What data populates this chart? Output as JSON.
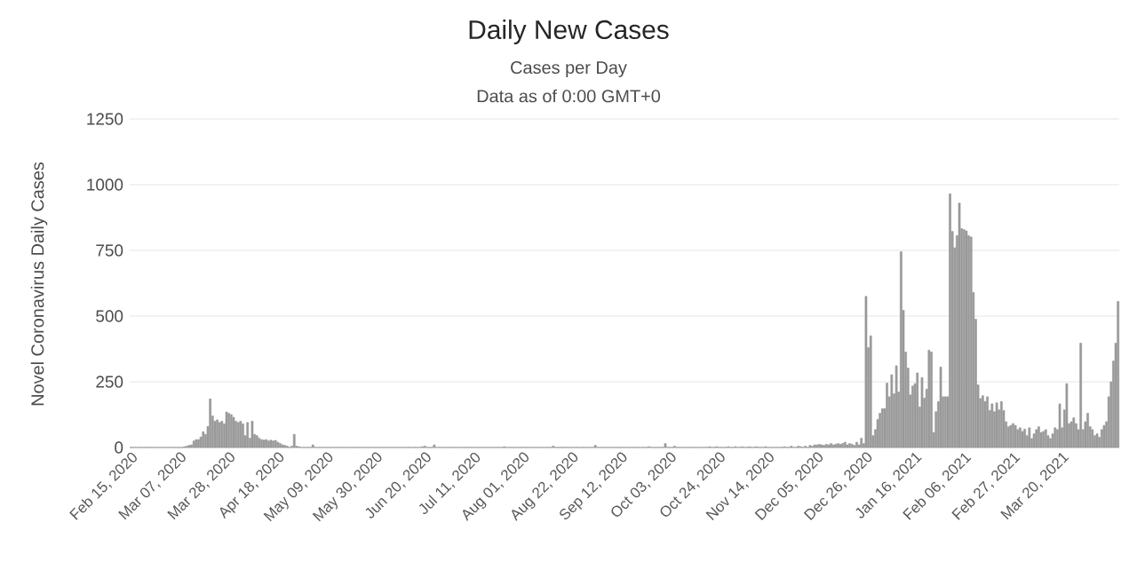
{
  "chart_data": {
    "type": "bar",
    "title": "Daily New Cases",
    "subtitle": "Cases per Day",
    "annotations": [
      "Data as of 0:00 GMT+0"
    ],
    "ylabel": "Novel Coronavirus Daily Cases",
    "color": "#999999",
    "ylim": [
      0,
      1250
    ],
    "yticks": [
      0,
      250,
      500,
      750,
      1000,
      1250
    ],
    "grid": "y",
    "categories": [
      "Feb 15, 2020",
      null,
      null,
      null,
      null,
      null,
      null,
      null,
      null,
      null,
      null,
      null,
      null,
      null,
      null,
      null,
      null,
      null,
      null,
      null,
      null,
      "Mar 07, 2020",
      null,
      null,
      null,
      null,
      null,
      null,
      null,
      null,
      null,
      null,
      null,
      null,
      null,
      null,
      null,
      null,
      null,
      null,
      null,
      null,
      "Mar 28, 2020",
      null,
      null,
      null,
      null,
      null,
      null,
      null,
      null,
      null,
      null,
      null,
      null,
      null,
      null,
      null,
      null,
      null,
      null,
      null,
      null,
      "Apr 18, 2020",
      null,
      null,
      null,
      null,
      null,
      null,
      null,
      null,
      null,
      null,
      null,
      null,
      null,
      null,
      null,
      null,
      null,
      null,
      null,
      null,
      "May 09, 2020",
      null,
      null,
      null,
      null,
      null,
      null,
      null,
      null,
      null,
      null,
      null,
      null,
      null,
      null,
      null,
      null,
      null,
      null,
      null,
      null,
      "May 30, 2020",
      null,
      null,
      null,
      null,
      null,
      null,
      null,
      null,
      null,
      null,
      null,
      null,
      null,
      null,
      null,
      null,
      null,
      null,
      null,
      null,
      "Jun 20, 2020",
      null,
      null,
      null,
      null,
      null,
      null,
      null,
      null,
      null,
      null,
      null,
      null,
      null,
      null,
      null,
      null,
      null,
      null,
      null,
      null,
      "Jul 11, 2020",
      null,
      null,
      null,
      null,
      null,
      null,
      null,
      null,
      null,
      null,
      null,
      null,
      null,
      null,
      null,
      null,
      null,
      null,
      null,
      null,
      "Aug 01, 2020",
      null,
      null,
      null,
      null,
      null,
      null,
      null,
      null,
      null,
      null,
      null,
      null,
      null,
      null,
      null,
      null,
      null,
      null,
      null,
      null,
      "Aug 22, 2020",
      null,
      null,
      null,
      null,
      null,
      null,
      null,
      null,
      null,
      null,
      null,
      null,
      null,
      null,
      null,
      null,
      null,
      null,
      null,
      null,
      "Sep 12, 2020",
      null,
      null,
      null,
      null,
      null,
      null,
      null,
      null,
      null,
      null,
      null,
      null,
      null,
      null,
      null,
      null,
      null,
      null,
      null,
      null,
      "Oct 03, 2020",
      null,
      null,
      null,
      null,
      null,
      null,
      null,
      null,
      null,
      null,
      null,
      null,
      null,
      null,
      null,
      null,
      null,
      null,
      null,
      null,
      "Oct 24, 2020",
      null,
      null,
      null,
      null,
      null,
      null,
      null,
      null,
      null,
      null,
      null,
      null,
      null,
      null,
      null,
      null,
      null,
      null,
      null,
      null,
      "Nov 14, 2020",
      null,
      null,
      null,
      null,
      null,
      null,
      null,
      null,
      null,
      null,
      null,
      null,
      null,
      null,
      null,
      null,
      null,
      null,
      null,
      null,
      "Dec 05, 2020",
      null,
      null,
      null,
      null,
      null,
      null,
      null,
      null,
      null,
      null,
      null,
      null,
      null,
      null,
      null,
      null,
      null,
      null,
      null,
      null,
      "Dec 26, 2020",
      null,
      null,
      null,
      null,
      null,
      null,
      null,
      null,
      null,
      null,
      null,
      null,
      null,
      null,
      null,
      null,
      null,
      null,
      null,
      null,
      "Jan 16, 2021",
      null,
      null,
      null,
      null,
      null,
      null,
      null,
      null,
      null,
      null,
      null,
      null,
      null,
      null,
      null,
      null,
      null,
      null,
      null,
      null,
      "Feb 06, 2021",
      null,
      null,
      null,
      null,
      null,
      null,
      null,
      null,
      null,
      null,
      null,
      null,
      null,
      null,
      null,
      null,
      null,
      null,
      null,
      null,
      "Feb 27, 2021",
      null,
      null,
      null,
      null,
      null,
      null,
      null,
      null,
      null,
      null,
      null,
      null,
      null,
      null,
      null,
      null,
      null,
      null,
      null,
      null,
      "Mar 20, 2021",
      null,
      null,
      null,
      null,
      null,
      null,
      null,
      null,
      null,
      null,
      null,
      null,
      null,
      null,
      null,
      null,
      null,
      null,
      null,
      null,
      null,
      null,
      null,
      null
    ],
    "values": [
      0,
      0,
      0,
      0,
      0,
      0,
      0,
      0,
      0,
      0,
      0,
      0,
      0,
      0,
      0,
      0,
      0,
      0,
      0,
      0,
      0,
      0,
      0,
      3,
      5,
      8,
      10,
      25,
      30,
      30,
      40,
      60,
      50,
      80,
      185,
      120,
      100,
      105,
      95,
      100,
      90,
      135,
      130,
      125,
      115,
      100,
      95,
      100,
      90,
      45,
      95,
      35,
      100,
      50,
      45,
      35,
      30,
      28,
      30,
      25,
      28,
      25,
      27,
      20,
      15,
      10,
      8,
      5,
      0,
      5,
      50,
      5,
      3,
      0,
      0,
      0,
      0,
      0,
      10,
      0,
      0,
      0,
      0,
      0,
      0,
      0,
      0,
      0,
      0,
      0,
      0,
      0,
      0,
      0,
      0,
      0,
      0,
      0,
      0,
      0,
      0,
      0,
      0,
      0,
      0,
      0,
      0,
      0,
      0,
      0,
      0,
      0,
      0,
      0,
      0,
      0,
      0,
      0,
      0,
      0,
      0,
      0,
      0,
      0,
      0,
      3,
      5,
      0,
      0,
      0,
      10,
      0,
      0,
      0,
      0,
      0,
      0,
      0,
      0,
      0,
      0,
      0,
      0,
      0,
      0,
      0,
      0,
      0,
      0,
      0,
      0,
      0,
      0,
      0,
      0,
      0,
      0,
      0,
      0,
      0,
      3,
      0,
      0,
      0,
      0,
      0,
      0,
      0,
      0,
      0,
      0,
      0,
      0,
      0,
      0,
      0,
      0,
      0,
      0,
      0,
      0,
      5,
      0,
      0,
      0,
      0,
      0,
      0,
      0,
      0,
      0,
      0,
      0,
      0,
      0,
      0,
      0,
      0,
      0,
      8,
      0,
      0,
      0,
      0,
      0,
      0,
      0,
      0,
      0,
      0,
      0,
      0,
      0,
      0,
      0,
      0,
      0,
      0,
      0,
      0,
      0,
      0,
      3,
      0,
      0,
      0,
      0,
      0,
      0,
      15,
      0,
      0,
      0,
      5,
      0,
      0,
      0,
      0,
      0,
      0,
      0,
      0,
      0,
      0,
      0,
      0,
      0,
      0,
      3,
      0,
      0,
      3,
      0,
      0,
      0,
      0,
      3,
      0,
      0,
      3,
      0,
      0,
      3,
      0,
      0,
      3,
      0,
      0,
      3,
      0,
      0,
      0,
      3,
      0,
      0,
      0,
      0,
      0,
      0,
      0,
      3,
      0,
      0,
      5,
      0,
      0,
      5,
      3,
      0,
      5,
      0,
      8,
      5,
      10,
      10,
      12,
      10,
      8,
      12,
      10,
      15,
      10,
      12,
      15,
      12,
      15,
      20,
      10,
      15,
      12,
      8,
      20,
      10,
      35,
      15,
      575,
      380,
      425,
      45,
      68,
      107,
      130,
      148,
      148,
      245,
      193,
      277,
      204,
      311,
      211,
      745,
      522,
      363,
      302,
      200,
      234,
      243,
      284,
      154,
      266,
      188,
      222,
      370,
      363,
      57,
      136,
      175,
      306,
      193,
      193,
      193,
      965,
      822,
      760,
      806,
      930,
      833,
      829,
      824,
      806,
      801,
      590,
      488,
      238,
      186,
      197,
      175,
      193,
      141,
      166,
      136,
      170,
      143,
      175,
      141,
      98,
      79,
      84,
      91,
      84,
      68,
      75,
      61,
      70,
      45,
      75,
      34,
      52,
      68,
      79,
      57,
      61,
      68,
      45,
      34,
      52,
      75,
      68,
      166,
      75,
      143,
      243,
      91,
      98,
      113,
      91,
      68,
      397,
      68,
      98,
      130,
      79,
      68,
      45,
      52,
      39,
      68,
      84,
      98,
      193,
      250,
      329,
      397,
      556
    ]
  }
}
